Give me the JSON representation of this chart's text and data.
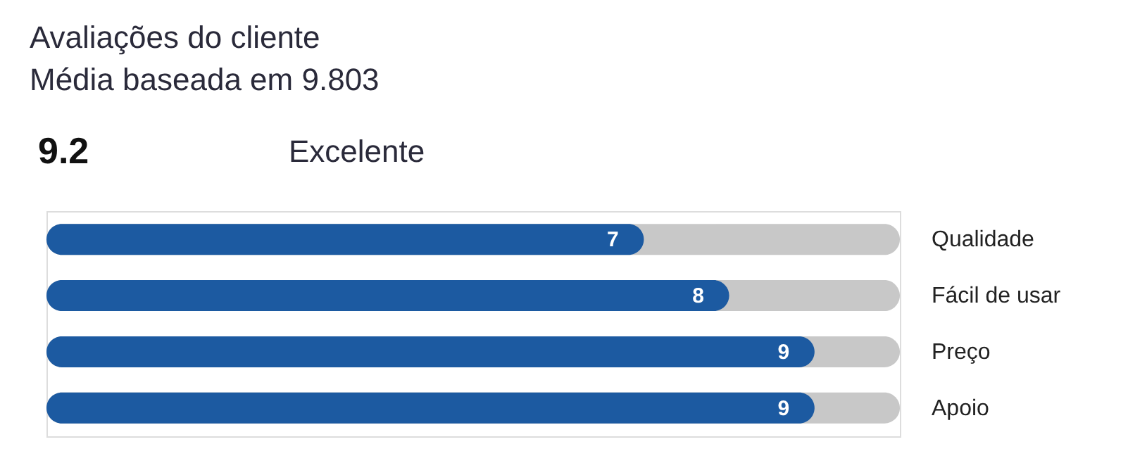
{
  "chart_data": {
    "type": "bar",
    "orientation": "horizontal",
    "title": "Avaliações do cliente",
    "subtitle": "Média baseada em 9.803",
    "annotations": [
      "9.2",
      "Excelente"
    ],
    "categories": [
      "Qualidade",
      "Fácil de usar",
      "Preço",
      "Apoio"
    ],
    "values": [
      7,
      8,
      9,
      9
    ],
    "color": "#1c5aa1",
    "xlim": [
      0,
      10
    ],
    "data_labels": true,
    "tick_labels": "y",
    "grid": false,
    "legend": false
  }
}
